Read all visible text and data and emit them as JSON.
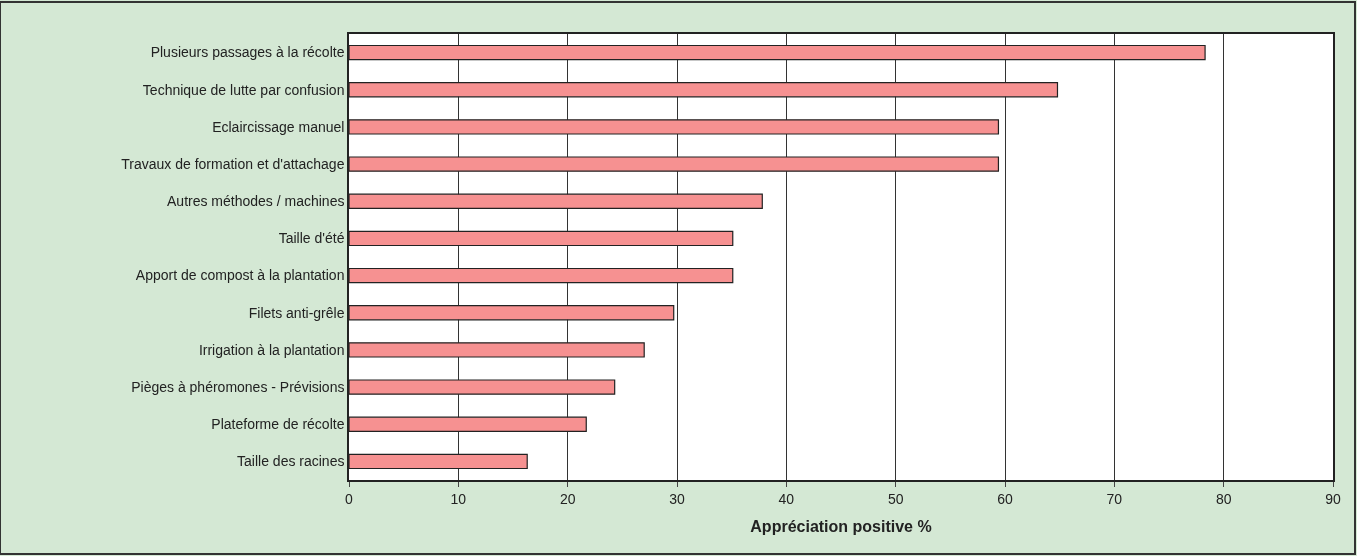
{
  "chart_data": {
    "type": "bar",
    "orientation": "horizontal",
    "xlabel": "Appréciation positive %",
    "categories": [
      "Plusieurs passages à la récolte",
      "Technique de lutte par confusion",
      "Eclaircissage manuel",
      "Travaux de formation et d'attachage",
      "Autres méthodes / machines",
      "Taille d'été",
      "Apport de compost à la plantation",
      "Filets anti-grêle",
      "Irrigation à la plantation",
      "Pièges à phéromones - Prévisions",
      "Plateforme de récolte",
      "Taille des racines"
    ],
    "values": [
      78.3,
      64.8,
      59.4,
      59.4,
      37.8,
      35.1,
      35.1,
      29.7,
      27.0,
      24.3,
      21.7,
      16.3
    ],
    "color": "#f69191",
    "xlim": [
      0,
      90
    ],
    "xticks": [
      0,
      10,
      20,
      30,
      40,
      50,
      60,
      70,
      80,
      90
    ],
    "grid": "x",
    "legend": false
  }
}
